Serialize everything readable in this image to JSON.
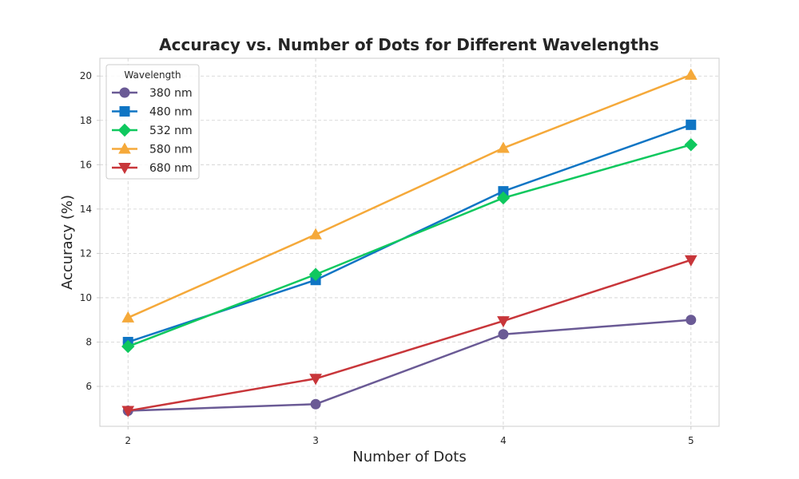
{
  "chart_data": {
    "type": "line",
    "title": "Accuracy vs. Number of Dots for Different Wavelengths",
    "xlabel": "Number of Dots",
    "ylabel": "Accuracy (%)",
    "x": [
      2,
      3,
      4,
      5
    ],
    "xlim": [
      1.85,
      5.15
    ],
    "ylim": [
      4.2,
      20.8
    ],
    "yticks": [
      6,
      8,
      10,
      12,
      14,
      16,
      18,
      20
    ],
    "grid": true,
    "legend": {
      "title": "Wavelength",
      "placement": "top-left"
    },
    "series": [
      {
        "name": "380 nm",
        "marker": "circle",
        "color": "#6a5a95",
        "values": [
          4.9,
          5.2,
          8.35,
          9.0
        ]
      },
      {
        "name": "480 nm",
        "marker": "square",
        "color": "#0f75c4",
        "values": [
          8.0,
          10.8,
          14.8,
          17.8
        ]
      },
      {
        "name": "532 nm",
        "marker": "diamond",
        "color": "#0fc85e",
        "values": [
          7.8,
          11.05,
          14.5,
          16.9
        ]
      },
      {
        "name": "580 nm",
        "marker": "triangle-up",
        "color": "#f5a93a",
        "values": [
          9.1,
          12.85,
          16.75,
          20.05
        ]
      },
      {
        "name": "680 nm",
        "marker": "triangle-down",
        "color": "#c8363a",
        "values": [
          4.9,
          6.35,
          8.95,
          11.7
        ]
      }
    ]
  }
}
